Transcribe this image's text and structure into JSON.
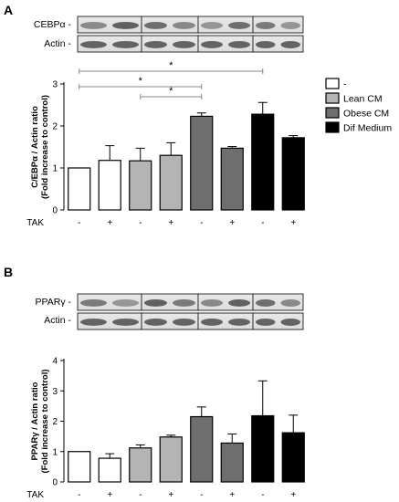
{
  "panels": [
    {
      "letter": "A",
      "blot": {
        "rows": [
          {
            "label": "CEBPα -"
          },
          {
            "label": "Actin -"
          }
        ]
      }
    },
    {
      "letter": "B",
      "blot": {
        "rows": [
          {
            "label": "PPARγ -"
          },
          {
            "label": "Actin -"
          }
        ]
      }
    }
  ],
  "legend": {
    "items": [
      {
        "label": "-",
        "color": "#ffffff"
      },
      {
        "label": "Lean CM",
        "color": "#b4b4b4"
      },
      {
        "label": "Obese CM",
        "color": "#6e6e6e"
      },
      {
        "label": "Dif Medium",
        "color": "#000000"
      }
    ]
  },
  "tak_label": "TAK",
  "tak_values": [
    "-",
    "+",
    "-",
    "+",
    "-",
    "+",
    "-",
    "+"
  ],
  "significance_marker": "*",
  "chart_data": [
    {
      "type": "bar",
      "panel": "A",
      "ylabel": "C/EBPα / Actin ratio",
      "ylabel2": "(Fold increase to control)",
      "ylim": [
        0,
        3
      ],
      "yticks": [
        0,
        1,
        2,
        3
      ],
      "categories": [
        "-",
        "+",
        "-",
        "+",
        "-",
        "+",
        "-",
        "+"
      ],
      "groups": [
        "-",
        "-",
        "Lean CM",
        "Lean CM",
        "Obese CM",
        "Obese CM",
        "Dif Medium",
        "Dif Medium"
      ],
      "colors": [
        "#ffffff",
        "#ffffff",
        "#b4b4b4",
        "#b4b4b4",
        "#6e6e6e",
        "#6e6e6e",
        "#000000",
        "#000000"
      ],
      "values": [
        1.0,
        1.18,
        1.17,
        1.3,
        2.23,
        1.47,
        2.28,
        1.72
      ],
      "errors": [
        0.0,
        0.35,
        0.3,
        0.3,
        0.08,
        0.04,
        0.28,
        0.05
      ],
      "significance": [
        {
          "from": 0,
          "to": 6,
          "label": "*"
        },
        {
          "from": 0,
          "to": 4,
          "label": "*"
        },
        {
          "from": 2,
          "to": 4,
          "label": "*"
        }
      ]
    },
    {
      "type": "bar",
      "panel": "B",
      "ylabel": "PPARγ / Actin ratio",
      "ylabel2": "(Fold increase to control)",
      "ylim": [
        0,
        4
      ],
      "yticks": [
        0,
        1,
        2,
        3,
        4
      ],
      "categories": [
        "-",
        "+",
        "-",
        "+",
        "-",
        "+",
        "-",
        "+"
      ],
      "groups": [
        "-",
        "-",
        "Lean CM",
        "Lean CM",
        "Obese CM",
        "Obese CM",
        "Dif Medium",
        "Dif Medium"
      ],
      "colors": [
        "#ffffff",
        "#ffffff",
        "#b4b4b4",
        "#b4b4b4",
        "#6e6e6e",
        "#6e6e6e",
        "#000000",
        "#000000"
      ],
      "values": [
        1.0,
        0.78,
        1.12,
        1.48,
        2.15,
        1.28,
        2.18,
        1.62
      ],
      "errors": [
        0.0,
        0.15,
        0.1,
        0.06,
        0.32,
        0.3,
        1.15,
        0.58
      ],
      "significance": []
    }
  ]
}
